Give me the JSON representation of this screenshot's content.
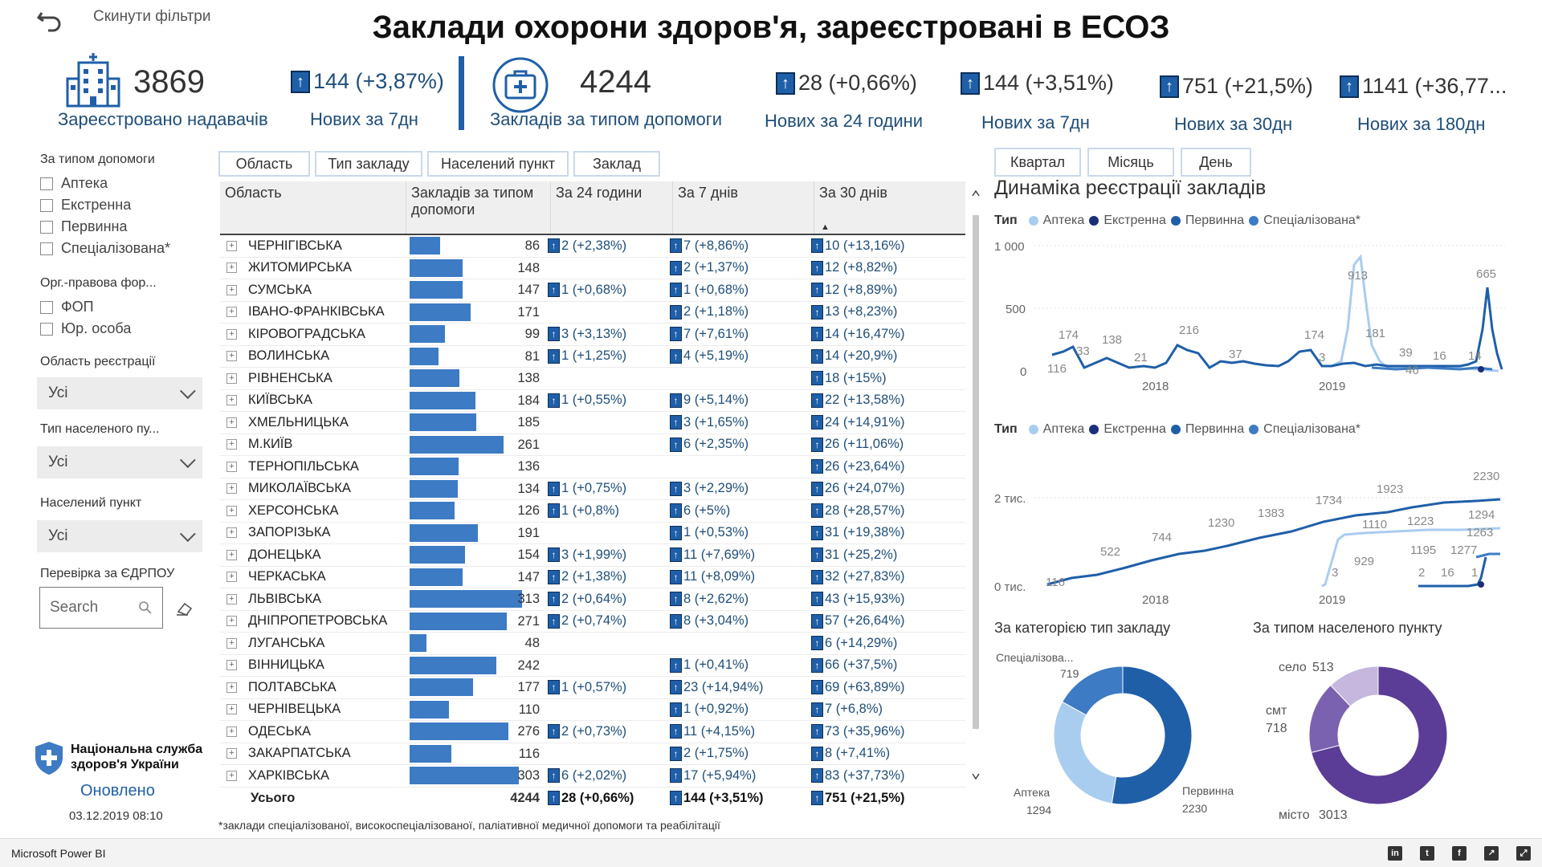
{
  "header": {
    "title": "Заклади охорони здоров'я, зареєстровані в ЕСОЗ",
    "reset_label": "Скинути фільтри"
  },
  "kpi": {
    "providers": {
      "value": "3869",
      "label": "Зареєстровано надавачів"
    },
    "providers_new": {
      "value": "144 (+3,87%)",
      "label": "Нових за 7дн"
    },
    "facilities": {
      "value": "4244",
      "label": "Закладів за типом допомоги"
    },
    "new_24h": {
      "value": "28 (+0,66%)",
      "label": "Нових за 24 години"
    },
    "new_7d": {
      "value": "144 (+3,51%)",
      "label": "Нових за 7дн"
    },
    "new_30d": {
      "value": "751 (+21,5%)",
      "label": "Нових за 30дн"
    },
    "new_180d": {
      "value": "1141 (+36,77...",
      "label": "Нових за 180дн"
    }
  },
  "filters": {
    "type_heading": "За типом допомоги",
    "type_options": [
      "Аптека",
      "Екстренна",
      "Первинна",
      "Спеціалізована*"
    ],
    "org_heading": "Орг.-правова фор...",
    "org_options": [
      "ФОП",
      "Юр. особа"
    ],
    "region_heading": "Область реєстрації",
    "region_value": "Усі",
    "settlement_type_heading": "Тип населеного пу...",
    "settlement_type_value": "Усі",
    "settlement_heading": "Населений пункт",
    "settlement_value": "Усі",
    "edrpou_heading": "Перевірка за ЄДРПОУ",
    "search_placeholder": "Search"
  },
  "logo": {
    "line1": "Національна служба",
    "line2": "здоров'я України",
    "updated_label": "Оновлено",
    "updated_value": "03.12.2019 08:10"
  },
  "table_tabs": [
    "Область",
    "Тип закладу",
    "Населений пункт",
    "Заклад"
  ],
  "table": {
    "headers": [
      "Область",
      "Закладів за типом допомоги",
      "За 24 години",
      "За 7 днів",
      "За 30 днів"
    ],
    "rows": [
      {
        "name": "ЧЕРНІГІВСЬКА",
        "count": 86,
        "d": "2 (+2,38%)",
        "w": "7 (+8,86%)",
        "m": "10 (+13,16%)"
      },
      {
        "name": "ЖИТОМИРСЬКА",
        "count": 148,
        "d": "",
        "w": "2 (+1,37%)",
        "m": "12 (+8,82%)"
      },
      {
        "name": "СУМСЬКА",
        "count": 147,
        "d": "1 (+0,68%)",
        "w": "1 (+0,68%)",
        "m": "12 (+8,89%)"
      },
      {
        "name": "ІВАНО-ФРАНКІВСЬКА",
        "count": 171,
        "d": "",
        "w": "2 (+1,18%)",
        "m": "13 (+8,23%)"
      },
      {
        "name": "КІРОВОГРАДСЬКА",
        "count": 99,
        "d": "3 (+3,13%)",
        "w": "7 (+7,61%)",
        "m": "14 (+16,47%)"
      },
      {
        "name": "ВОЛИНСЬКА",
        "count": 81,
        "d": "1 (+1,25%)",
        "w": "4 (+5,19%)",
        "m": "14 (+20,9%)"
      },
      {
        "name": "РІВНЕНСЬКА",
        "count": 138,
        "d": "",
        "w": "",
        "m": "18 (+15%)"
      },
      {
        "name": "КИЇВСЬКА",
        "count": 184,
        "d": "1 (+0,55%)",
        "w": "9 (+5,14%)",
        "m": "22 (+13,58%)"
      },
      {
        "name": "ХМЕЛЬНИЦЬКА",
        "count": 185,
        "d": "",
        "w": "3 (+1,65%)",
        "m": "24 (+14,91%)"
      },
      {
        "name": "М.КИЇВ",
        "count": 261,
        "d": "",
        "w": "6 (+2,35%)",
        "m": "26 (+11,06%)"
      },
      {
        "name": "ТЕРНОПІЛЬСЬКА",
        "count": 136,
        "d": "",
        "w": "",
        "m": "26 (+23,64%)"
      },
      {
        "name": "МИКОЛАЇВСЬКА",
        "count": 134,
        "d": "1 (+0,75%)",
        "w": "3 (+2,29%)",
        "m": "26 (+24,07%)"
      },
      {
        "name": "ХЕРСОНСЬКА",
        "count": 126,
        "d": "1 (+0,8%)",
        "w": "6 (+5%)",
        "m": "28 (+28,57%)"
      },
      {
        "name": "ЗАПОРІЗЬКА",
        "count": 191,
        "d": "",
        "w": "1 (+0,53%)",
        "m": "31 (+19,38%)"
      },
      {
        "name": "ДОНЕЦЬКА",
        "count": 154,
        "d": "3 (+1,99%)",
        "w": "11 (+7,69%)",
        "m": "31 (+25,2%)"
      },
      {
        "name": "ЧЕРКАСЬКА",
        "count": 147,
        "d": "2 (+1,38%)",
        "w": "11 (+8,09%)",
        "m": "32 (+27,83%)"
      },
      {
        "name": "ЛЬВІВСЬКА",
        "count": 313,
        "d": "2 (+0,64%)",
        "w": "8 (+2,62%)",
        "m": "43 (+15,93%)"
      },
      {
        "name": "ДНІПРОПЕТРОВСЬКА",
        "count": 271,
        "d": "2 (+0,74%)",
        "w": "8 (+3,04%)",
        "m": "57 (+26,64%)"
      },
      {
        "name": "ЛУГАНСЬКА",
        "count": 48,
        "d": "",
        "w": "",
        "m": "6 (+14,29%)"
      },
      {
        "name": "ВІННИЦЬКА",
        "count": 242,
        "d": "",
        "w": "1 (+0,41%)",
        "m": "66 (+37,5%)"
      },
      {
        "name": "ПОЛТАВСЬКА",
        "count": 177,
        "d": "1 (+0,57%)",
        "w": "23 (+14,94%)",
        "m": "69 (+63,89%)"
      },
      {
        "name": "ЧЕРНІВЕЦЬКА",
        "count": 110,
        "d": "",
        "w": "1 (+0,92%)",
        "m": "7 (+6,8%)"
      },
      {
        "name": "ОДЕСЬКА",
        "count": 276,
        "d": "2 (+0,73%)",
        "w": "11 (+4,15%)",
        "m": "73 (+35,96%)"
      },
      {
        "name": "ЗАКАРПАТСЬКА",
        "count": 116,
        "d": "",
        "w": "2 (+1,75%)",
        "m": "8 (+7,41%)"
      },
      {
        "name": "ХАРКІВСЬКА",
        "count": 303,
        "d": "6 (+2,02%)",
        "w": "17 (+5,94%)",
        "m": "83 (+37,73%)"
      }
    ],
    "total": {
      "name": "Усього",
      "count": "4244",
      "d": "28 (+0,66%)",
      "w": "144 (+3,51%)",
      "m": "751 (+21,5%)"
    }
  },
  "footnote": "*заклади спеціалізованої, високоспеціалізованої, паліативної медичної допомоги та реабілітації",
  "period_tabs": [
    "Квартал",
    "Місяць",
    "День"
  ],
  "right": {
    "dynamics_title": "Динаміка реєстрації закладів",
    "legend_label": "Тип",
    "legend": [
      {
        "name": "Аптека",
        "color": "#a9cdef"
      },
      {
        "name": "Екстренна",
        "color": "#1a2f7a"
      },
      {
        "name": "Первинна",
        "color": "#1f5fa8"
      },
      {
        "name": "Спеціалізована*",
        "color": "#3d7bc4"
      }
    ],
    "chart1_ticks": [
      "1 000",
      "500",
      "0"
    ],
    "chart2_ticks": [
      "2 тис.",
      "0 тис."
    ],
    "years": [
      "2018",
      "2019"
    ],
    "category_title": "За категорією тип закладу",
    "settlement_title": "За типом населеного пункту"
  },
  "chart_data": [
    {
      "type": "line",
      "ylim": [
        0,
        1000
      ],
      "x": [
        "2018",
        "2019"
      ],
      "series": [
        {
          "name": "Первинна",
          "labels": [
            116,
            174,
            33,
            138,
            21,
            216,
            37,
            174,
            3,
            181,
            39,
            16,
            14,
            665
          ]
        },
        {
          "name": "Аптека",
          "labels": [
            913
          ]
        }
      ]
    },
    {
      "type": "line",
      "x": [
        "2018",
        "2019"
      ],
      "series": [
        {
          "name": "Первинна",
          "labels": [
            116,
            522,
            744,
            1230,
            1383,
            1734,
            1923,
            2230
          ]
        },
        {
          "name": "Аптека",
          "labels": [
            3,
            929,
            1110,
            1223,
            1294
          ]
        },
        {
          "name": "Спеціалізована*",
          "labels": [
            1195,
            1263,
            1277
          ]
        },
        {
          "name": "Екстренна",
          "labels": [
            2,
            16,
            1
          ]
        }
      ]
    },
    {
      "type": "pie",
      "title": "За категорією тип закладу",
      "labels": [
        "Спеціалізова...",
        "Аптека",
        "Первинна"
      ],
      "values": [
        719,
        1294,
        2230
      ]
    },
    {
      "type": "pie",
      "title": "За типом населеного пункту",
      "labels": [
        "село",
        "смт",
        "місто"
      ],
      "values": [
        513,
        718,
        3013
      ]
    }
  ],
  "bottom": {
    "brand": "Microsoft Power BI"
  }
}
